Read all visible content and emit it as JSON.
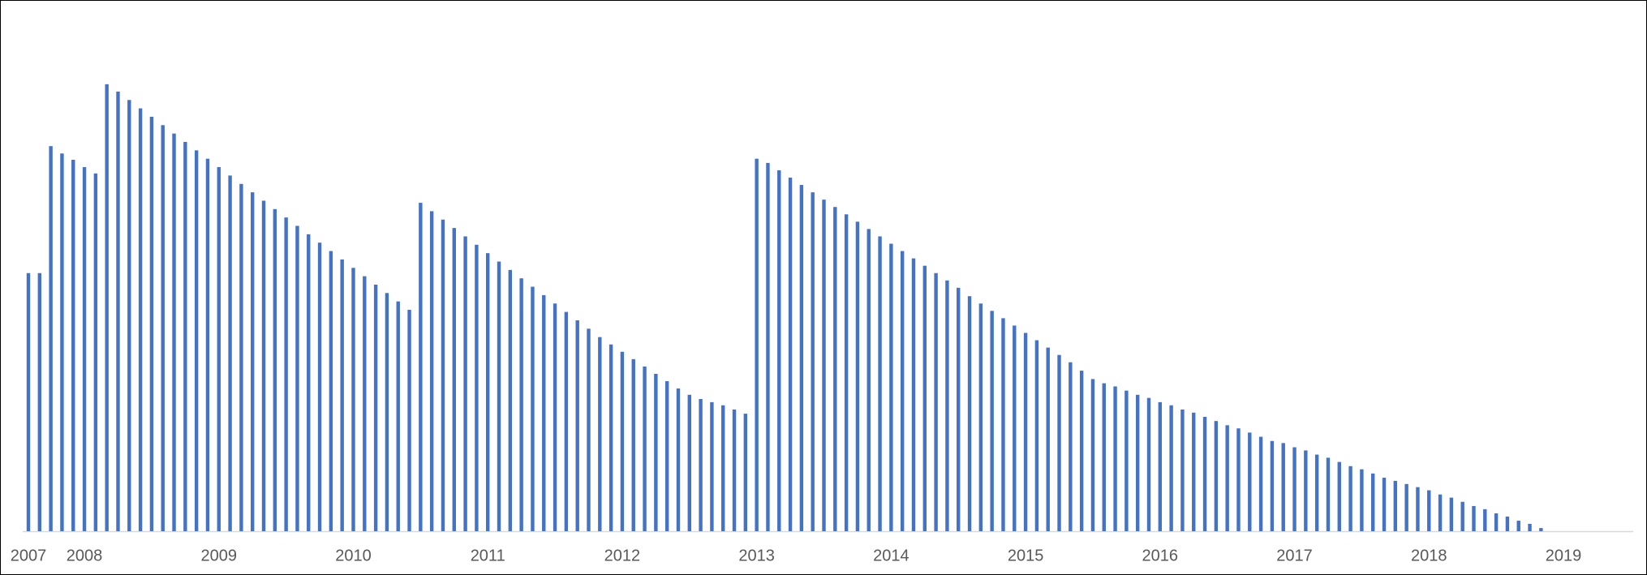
{
  "chart_data": {
    "type": "bar",
    "color": "#4472c4",
    "categories": [
      "2007",
      null,
      null,
      null,
      null,
      "2008",
      null,
      null,
      null,
      null,
      null,
      null,
      null,
      null,
      null,
      null,
      null,
      "2009",
      null,
      null,
      null,
      null,
      null,
      null,
      null,
      null,
      null,
      null,
      null,
      "2010",
      null,
      null,
      null,
      null,
      null,
      null,
      null,
      null,
      null,
      null,
      null,
      "2011",
      null,
      null,
      null,
      null,
      null,
      null,
      null,
      null,
      null,
      null,
      null,
      "2012",
      null,
      null,
      null,
      null,
      null,
      null,
      null,
      null,
      null,
      null,
      null,
      "2013",
      null,
      null,
      null,
      null,
      null,
      null,
      null,
      null,
      null,
      null,
      null,
      "2014",
      null,
      null,
      null,
      null,
      null,
      null,
      null,
      null,
      null,
      null,
      null,
      "2015",
      null,
      null,
      null,
      null,
      null,
      null,
      null,
      null,
      null,
      null,
      null,
      "2016",
      null,
      null,
      null,
      null,
      null,
      null,
      null,
      null,
      null,
      null,
      null,
      "2017",
      null,
      null,
      null,
      null,
      null,
      null,
      null,
      null,
      null,
      null,
      null,
      "2018",
      null,
      null,
      null,
      null,
      null,
      null,
      null,
      null,
      null,
      null,
      null,
      "2019",
      null,
      null,
      null,
      null,
      null,
      null
    ],
    "values": [
      246,
      246,
      367,
      360,
      354,
      347,
      341,
      426,
      419,
      411,
      403,
      395,
      387,
      379,
      371,
      363,
      355,
      347,
      339,
      331,
      323,
      315,
      307,
      299,
      291,
      283,
      275,
      267,
      259,
      251,
      243,
      235,
      227,
      219,
      211,
      313,
      305,
      297,
      289,
      281,
      273,
      265,
      257,
      249,
      241,
      233,
      225,
      217,
      209,
      201,
      193,
      185,
      178,
      171,
      164,
      157,
      150,
      143,
      136,
      130,
      126,
      123,
      120,
      116,
      112,
      355,
      351,
      344,
      337,
      330,
      323,
      316,
      309,
      302,
      295,
      288,
      281,
      274,
      267,
      260,
      253,
      246,
      239,
      232,
      224,
      217,
      210,
      203,
      196,
      189,
      182,
      175,
      168,
      161,
      153,
      145,
      141,
      138,
      134,
      130,
      127,
      123,
      120,
      116,
      113,
      109,
      105,
      101,
      98,
      94,
      90,
      86,
      84,
      80,
      77,
      73,
      70,
      66,
      62,
      59,
      55,
      51,
      48,
      45,
      42,
      39,
      35,
      32,
      28,
      24,
      21,
      17,
      14,
      10,
      7,
      3,
      null,
      null,
      null,
      null,
      null,
      null,
      null,
      null
    ],
    "ylim": [
      0,
      480
    ]
  }
}
